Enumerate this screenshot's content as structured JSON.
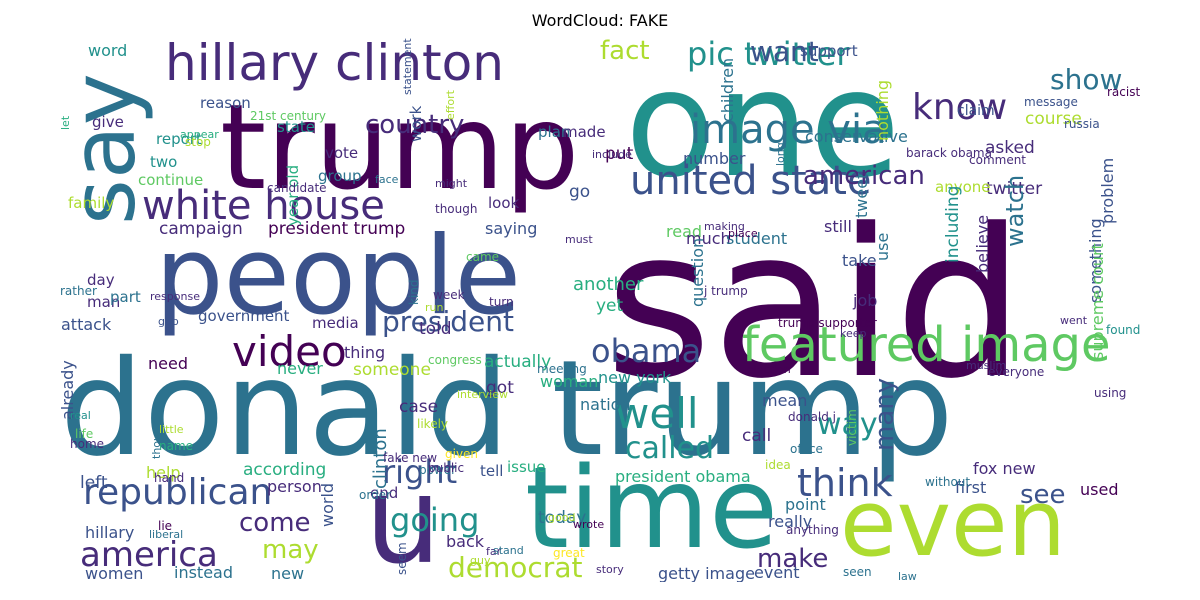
{
  "title": "WordCloud: FAKE",
  "palette": "viridis",
  "colors": {
    "c1": "#440154",
    "c2": "#472c7a",
    "c3": "#3b528b",
    "c4": "#2c728e",
    "c5": "#21918c",
    "c6": "#28ae80",
    "c7": "#5ec962",
    "c8": "#addc30",
    "c9": "#fde725"
  },
  "words": [
    {
      "text": "said",
      "color": "c1",
      "rot": false
    },
    {
      "text": "trump",
      "color": "c1",
      "rot": false
    },
    {
      "text": "one",
      "color": "c5",
      "rot": false
    },
    {
      "text": "donald trump",
      "color": "c4",
      "rot": false
    },
    {
      "text": "people",
      "color": "c3",
      "rot": false
    },
    {
      "text": "say",
      "color": "c4",
      "rot": true
    },
    {
      "text": "time",
      "color": "c5",
      "rot": false
    },
    {
      "text": "even",
      "color": "c8",
      "rot": false
    },
    {
      "text": "u",
      "color": "c2",
      "rot": false
    },
    {
      "text": "hillary clinton",
      "color": "c2",
      "rot": false
    },
    {
      "text": "white house",
      "color": "c2",
      "rot": false
    },
    {
      "text": "featured image",
      "color": "c7",
      "rot": false
    },
    {
      "text": "video",
      "color": "c1",
      "rot": false
    },
    {
      "text": "well",
      "color": "c5",
      "rot": false
    },
    {
      "text": "image via",
      "color": "c4",
      "rot": false
    },
    {
      "text": "united state",
      "color": "c3",
      "rot": false
    },
    {
      "text": "pic twitter",
      "color": "c5",
      "rot": false
    },
    {
      "text": "republican",
      "color": "c3",
      "rot": false
    },
    {
      "text": "america",
      "color": "c2",
      "rot": false
    },
    {
      "text": "obama",
      "color": "c3",
      "rot": false
    },
    {
      "text": "know",
      "color": "c2",
      "rot": false
    },
    {
      "text": "think",
      "color": "c3",
      "rot": false
    },
    {
      "text": "going",
      "color": "c5",
      "rot": false
    },
    {
      "text": "called",
      "color": "c5",
      "rot": false
    },
    {
      "text": "right",
      "color": "c3",
      "rot": false
    },
    {
      "text": "president",
      "color": "c3",
      "rot": false
    },
    {
      "text": "democrat",
      "color": "c8",
      "rot": false
    },
    {
      "text": "country",
      "color": "c2",
      "rot": false
    },
    {
      "text": "american",
      "color": "c2",
      "rot": false
    },
    {
      "text": "show",
      "color": "c4",
      "rot": false
    },
    {
      "text": "want",
      "color": "c3",
      "rot": false
    },
    {
      "text": "fact",
      "color": "c8",
      "rot": false
    },
    {
      "text": "way",
      "color": "c5",
      "rot": false
    },
    {
      "text": "come",
      "color": "c2",
      "rot": false
    },
    {
      "text": "may",
      "color": "c8",
      "rot": false
    },
    {
      "text": "make",
      "color": "c2",
      "rot": false
    },
    {
      "text": "see",
      "color": "c3",
      "rot": false
    },
    {
      "text": "many",
      "color": "c3",
      "rot": true
    },
    {
      "text": "campaign",
      "color": "c2",
      "rot": false
    },
    {
      "text": "president trump",
      "color": "c1",
      "rot": false
    },
    {
      "text": "word",
      "color": "c5",
      "rot": false
    },
    {
      "text": "reason",
      "color": "c3",
      "rot": false
    },
    {
      "text": "21st century",
      "color": "c7",
      "rot": false
    },
    {
      "text": "state",
      "color": "c5",
      "rot": false
    },
    {
      "text": "plan",
      "color": "c4",
      "rot": false
    },
    {
      "text": "made",
      "color": "c2",
      "rot": false
    },
    {
      "text": "give",
      "color": "c2",
      "rot": false
    },
    {
      "text": "report",
      "color": "c5",
      "rot": false
    },
    {
      "text": "two",
      "color": "c5",
      "rot": false
    },
    {
      "text": "continue",
      "color": "c7",
      "rot": false
    },
    {
      "text": "family",
      "color": "c8",
      "rot": false
    },
    {
      "text": "day",
      "color": "c2",
      "rot": false
    },
    {
      "text": "man",
      "color": "c2",
      "rot": false
    },
    {
      "text": "part",
      "color": "c4",
      "rot": false
    },
    {
      "text": "attack",
      "color": "c3",
      "rot": false
    },
    {
      "text": "government",
      "color": "c3",
      "rot": false
    },
    {
      "text": "media",
      "color": "c2",
      "rot": false
    },
    {
      "text": "thing",
      "color": "c2",
      "rot": false
    },
    {
      "text": "need",
      "color": "c1",
      "rot": false
    },
    {
      "text": "someone",
      "color": "c8",
      "rot": false
    },
    {
      "text": "never",
      "color": "c6",
      "rot": false
    },
    {
      "text": "vote",
      "color": "c2",
      "rot": false
    },
    {
      "text": "group",
      "color": "c4",
      "rot": false
    },
    {
      "text": "work",
      "color": "c3",
      "rot": true
    },
    {
      "text": "year old",
      "color": "c6",
      "rot": true
    },
    {
      "text": "look",
      "color": "c2",
      "rot": false
    },
    {
      "text": "saying",
      "color": "c3",
      "rot": false
    },
    {
      "text": "go",
      "color": "c3",
      "rot": false
    },
    {
      "text": "put",
      "color": "c1",
      "rot": false
    },
    {
      "text": "read",
      "color": "c7",
      "rot": false
    },
    {
      "text": "much",
      "color": "c2",
      "rot": false
    },
    {
      "text": "student",
      "color": "c4",
      "rot": false
    },
    {
      "text": "another",
      "color": "c6",
      "rot": false
    },
    {
      "text": "yet",
      "color": "c6",
      "rot": false
    },
    {
      "text": "told",
      "color": "c2",
      "rot": false
    },
    {
      "text": "actually",
      "color": "c6",
      "rot": false
    },
    {
      "text": "new york",
      "color": "c5",
      "rot": false
    },
    {
      "text": "nation",
      "color": "c4",
      "rot": false
    },
    {
      "text": "woman",
      "color": "c6",
      "rot": false
    },
    {
      "text": "got",
      "color": "c2",
      "rot": false
    },
    {
      "text": "case",
      "color": "c2",
      "rot": false
    },
    {
      "text": "already",
      "color": "c3",
      "rot": true
    },
    {
      "text": "help",
      "color": "c8",
      "rot": false
    },
    {
      "text": "according",
      "color": "c6",
      "rot": false
    },
    {
      "text": "person",
      "color": "c2",
      "rot": false
    },
    {
      "text": "left",
      "color": "c3",
      "rot": false
    },
    {
      "text": "end",
      "color": "c2",
      "rot": false
    },
    {
      "text": "tell",
      "color": "c3",
      "rot": false
    },
    {
      "text": "issue",
      "color": "c6",
      "rot": false
    },
    {
      "text": "president obama",
      "color": "c6",
      "rot": false
    },
    {
      "text": "mean",
      "color": "c3",
      "rot": false
    },
    {
      "text": "call",
      "color": "c2",
      "rot": false
    },
    {
      "text": "fox new",
      "color": "c2",
      "rot": false
    },
    {
      "text": "first",
      "color": "c3",
      "rot": false
    },
    {
      "text": "used",
      "color": "c1",
      "rot": false
    },
    {
      "text": "point",
      "color": "c4",
      "rot": false
    },
    {
      "text": "really",
      "color": "c3",
      "rot": false
    },
    {
      "text": "today",
      "color": "c4",
      "rot": false
    },
    {
      "text": "back",
      "color": "c2",
      "rot": false
    },
    {
      "text": "instead",
      "color": "c4",
      "rot": false
    },
    {
      "text": "new",
      "color": "c4",
      "rot": false
    },
    {
      "text": "women",
      "color": "c3",
      "rot": false
    },
    {
      "text": "hillary",
      "color": "c3",
      "rot": false
    },
    {
      "text": "world",
      "color": "c3",
      "rot": true
    },
    {
      "text": "clinton",
      "color": "c4",
      "rot": true
    },
    {
      "text": "getty image",
      "color": "c3",
      "rot": false
    },
    {
      "text": "event",
      "color": "c3",
      "rot": false
    },
    {
      "text": "twitter",
      "color": "c2",
      "rot": false
    },
    {
      "text": "anyone",
      "color": "c8",
      "rot": false
    },
    {
      "text": "asked",
      "color": "c2",
      "rot": false
    },
    {
      "text": "conservative",
      "color": "c4",
      "rot": false
    },
    {
      "text": "number",
      "color": "c3",
      "rot": false
    },
    {
      "text": "still",
      "color": "c2",
      "rot": false
    },
    {
      "text": "take",
      "color": "c3",
      "rot": false
    },
    {
      "text": "job",
      "color": "c2",
      "rot": false
    },
    {
      "text": "watch",
      "color": "c4",
      "rot": true
    },
    {
      "text": "believe",
      "color": "c2",
      "rot": true
    },
    {
      "text": "including",
      "color": "c5",
      "rot": true
    },
    {
      "text": "something",
      "color": "c3",
      "rot": true
    },
    {
      "text": "question",
      "color": "c4",
      "rot": true
    },
    {
      "text": "tweet",
      "color": "c4",
      "rot": true
    },
    {
      "text": "use",
      "color": "c4",
      "rot": true
    },
    {
      "text": "course",
      "color": "c8",
      "rot": false
    },
    {
      "text": "claim",
      "color": "c3",
      "rot": false
    },
    {
      "text": "support",
      "color": "c3",
      "rot": false
    },
    {
      "text": "children",
      "color": "c4",
      "rot": true
    },
    {
      "text": "nothing",
      "color": "c8",
      "rot": true
    },
    {
      "text": "problem",
      "color": "c3",
      "rot": true
    },
    {
      "text": "racist",
      "color": "c1",
      "rot": false
    },
    {
      "text": "message",
      "color": "c3",
      "rot": false
    },
    {
      "text": "russia",
      "color": "c3",
      "rot": false
    },
    {
      "text": "barack obama",
      "color": "c2",
      "rot": false
    },
    {
      "text": "comment",
      "color": "c2",
      "rot": false
    },
    {
      "text": "supreme court",
      "color": "c7",
      "rot": true
    },
    {
      "text": "trump supporter",
      "color": "c1",
      "rot": false
    },
    {
      "text": "found",
      "color": "c5",
      "rot": false
    },
    {
      "text": "went",
      "color": "c2",
      "rot": false
    },
    {
      "text": "keep",
      "color": "c2",
      "rot": false
    },
    {
      "text": "election",
      "color": "c1",
      "rot": false
    },
    {
      "text": "muslim",
      "color": "c2",
      "rot": false
    },
    {
      "text": "everyone",
      "color": "c2",
      "rot": false
    },
    {
      "text": "using",
      "color": "c2",
      "rot": false
    },
    {
      "text": "victim",
      "color": "c7",
      "rot": true
    },
    {
      "text": "idea",
      "color": "c8",
      "rot": false
    },
    {
      "text": "office",
      "color": "c4",
      "rot": false
    },
    {
      "text": "without",
      "color": "c4",
      "rot": false
    },
    {
      "text": "donald j",
      "color": "c2",
      "rot": false
    },
    {
      "text": "anything",
      "color": "c2",
      "rot": false
    },
    {
      "text": "seen",
      "color": "c4",
      "rot": false
    },
    {
      "text": "law",
      "color": "c4",
      "rot": false
    },
    {
      "text": "story",
      "color": "c2",
      "rot": false
    },
    {
      "text": "wrote",
      "color": "c1",
      "rot": false
    },
    {
      "text": "good",
      "color": "c8",
      "rot": false
    },
    {
      "text": "great",
      "color": "c9",
      "rot": false
    },
    {
      "text": "far",
      "color": "c2",
      "rot": false
    },
    {
      "text": "stand",
      "color": "c4",
      "rot": false
    },
    {
      "text": "guy",
      "color": "c8",
      "rot": false
    },
    {
      "text": "lie",
      "color": "c1",
      "rot": false
    },
    {
      "text": "liberal",
      "color": "c4",
      "rot": false
    },
    {
      "text": "hand",
      "color": "c2",
      "rot": false
    },
    {
      "text": "power",
      "color": "c4",
      "rot": false
    },
    {
      "text": "given",
      "color": "c9",
      "rot": false
    },
    {
      "text": "public",
      "color": "c2",
      "rot": false
    },
    {
      "text": "likely",
      "color": "c8",
      "rot": false
    },
    {
      "text": "interview",
      "color": "c8",
      "rot": false
    },
    {
      "text": "meeting",
      "color": "c4",
      "rot": false
    },
    {
      "text": "congress",
      "color": "c7",
      "rot": false
    },
    {
      "text": "fake new",
      "color": "c2",
      "rot": false
    },
    {
      "text": "thought",
      "color": "c4",
      "rot": true
    },
    {
      "text": "name",
      "color": "c6",
      "rot": false
    },
    {
      "text": "real",
      "color": "c5",
      "rot": false
    },
    {
      "text": "life",
      "color": "c7",
      "rot": false
    },
    {
      "text": "home",
      "color": "c2",
      "rot": false
    },
    {
      "text": "little",
      "color": "c8",
      "rot": false
    },
    {
      "text": "gop",
      "color": "c3",
      "rot": false
    },
    {
      "text": "rather",
      "color": "c4",
      "rot": false
    },
    {
      "text": "response",
      "color": "c2",
      "rot": false
    },
    {
      "text": "kind",
      "color": "c4",
      "rot": true
    },
    {
      "text": "week",
      "color": "c2",
      "rot": false
    },
    {
      "text": "run",
      "color": "c8",
      "rot": false
    },
    {
      "text": "came",
      "color": "c7",
      "rot": false
    },
    {
      "text": "turn",
      "color": "c2",
      "rot": false
    },
    {
      "text": "j trump",
      "color": "c2",
      "rot": false
    },
    {
      "text": "must",
      "color": "c2",
      "rot": false
    },
    {
      "text": "place",
      "color": "c1",
      "rot": false
    },
    {
      "text": "making",
      "color": "c2",
      "rot": false
    },
    {
      "text": "might",
      "color": "c2",
      "rot": false
    },
    {
      "text": "face",
      "color": "c4",
      "rot": false
    },
    {
      "text": "candidate",
      "color": "c2",
      "rot": false
    },
    {
      "text": "though",
      "color": "c2",
      "rot": false
    },
    {
      "text": "include",
      "color": "c2",
      "rot": false
    },
    {
      "text": "long",
      "color": "c4",
      "rot": true
    },
    {
      "text": "effort",
      "color": "c8",
      "rot": true
    },
    {
      "text": "statement",
      "color": "c3",
      "rot": true
    },
    {
      "text": "let",
      "color": "c6",
      "rot": true
    },
    {
      "text": "appear",
      "color": "c6",
      "rot": false
    },
    {
      "text": "stop",
      "color": "c8",
      "rot": false
    },
    {
      "text": "order",
      "color": "c4",
      "rot": false
    },
    {
      "text": "seem",
      "color": "c3",
      "rot": true
    }
  ]
}
